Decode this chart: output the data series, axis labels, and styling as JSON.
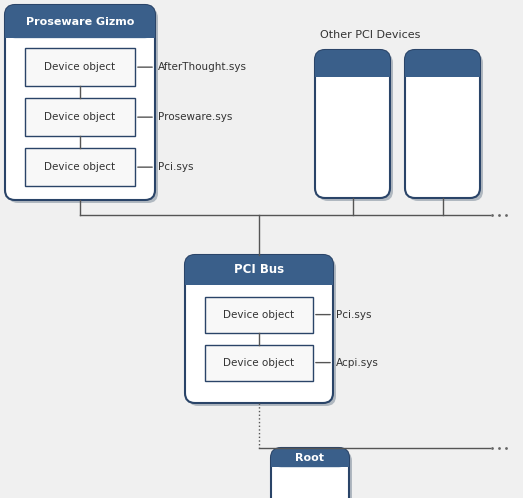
{
  "bg_color": "#f0f0f0",
  "header_color_top": "#3a5f8a",
  "header_color_bot": "#2a4a6e",
  "header_text_color": "#ffffff",
  "box_border_color": "#2a4468",
  "box_bg": "#ffffff",
  "inner_bg": "#f8f8f8",
  "shadow_color": "#b0b8c0",
  "line_color": "#555555",
  "text_color": "#333333",
  "dot_color": "#666666",
  "proseware_title": "Proseware Gizmo",
  "proseware_objs": [
    "Device object",
    "Device object",
    "Device object"
  ],
  "proseware_labels": [
    "AfterThought.sys",
    "Proseware.sys",
    "Pci.sys"
  ],
  "pci_title": "PCI Bus",
  "pci_objs": [
    "Device object",
    "Device object"
  ],
  "pci_labels": [
    "Pci.sys",
    "Acpi.sys"
  ],
  "root_title": "Root",
  "other_title": "Other PCI Devices"
}
